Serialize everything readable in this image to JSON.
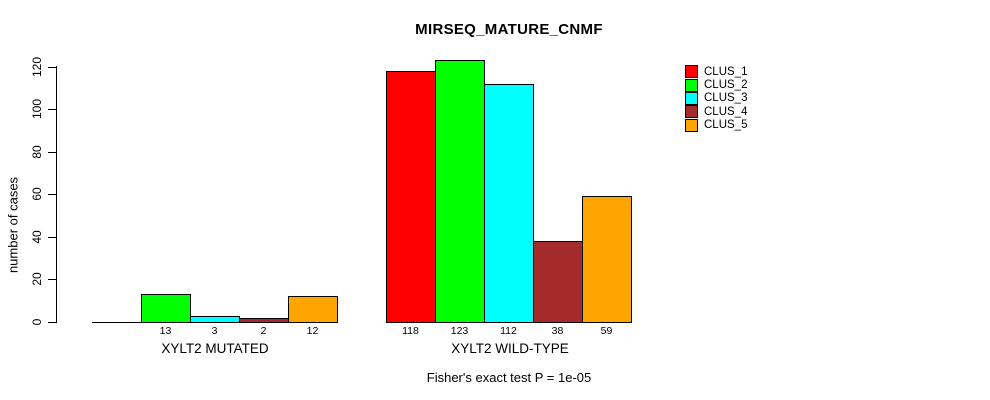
{
  "title": "MIRSEQ_MATURE_CNMF",
  "chart_data": {
    "type": "bar",
    "title": "MIRSEQ_MATURE_CNMF",
    "xlabel": "",
    "ylabel": "number of cases",
    "ylim": [
      0,
      120
    ],
    "yticks": [
      0,
      20,
      40,
      60,
      80,
      100,
      120
    ],
    "grid": false,
    "legend_position": "topright",
    "categories": [
      "XYLT2 MUTATED",
      "XYLT2 WILD-TYPE"
    ],
    "series": [
      {
        "name": "CLUS_1",
        "color": "#FF0000",
        "values": [
          0,
          118
        ]
      },
      {
        "name": "CLUS_2",
        "color": "#00FF00",
        "values": [
          13,
          123
        ]
      },
      {
        "name": "CLUS_3",
        "color": "#00FFFF",
        "values": [
          3,
          112
        ]
      },
      {
        "name": "CLUS_4",
        "color": "#A52A2A",
        "values": [
          2,
          38
        ]
      },
      {
        "name": "CLUS_5",
        "color": "#FFA500",
        "values": [
          12,
          59
        ]
      }
    ],
    "bar_value_labels": [
      [
        "",
        "13",
        "3",
        "2",
        "12"
      ],
      [
        "118",
        "123",
        "112",
        "38",
        "59"
      ]
    ],
    "annotation": "Fisher's exact test P = 1e-05"
  },
  "colors": {
    "background": "#FFFFFF",
    "axis": "#000000",
    "text": "#000000"
  }
}
